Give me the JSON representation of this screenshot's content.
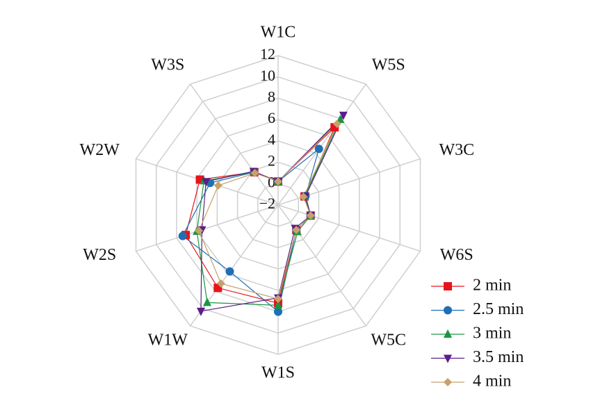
{
  "chart_data": {
    "type": "radar",
    "categories": [
      "W1C",
      "W5S",
      "W3C",
      "W6S",
      "W5C",
      "W1S",
      "W1W",
      "W2S",
      "W2W",
      "W3S"
    ],
    "rlim": [
      -2,
      12
    ],
    "rticks": [
      {
        "value": -2,
        "label": "−2"
      },
      0,
      2,
      4,
      6,
      8,
      10,
      12
    ],
    "grid": true,
    "legend": "bottom-right",
    "series": [
      {
        "name": "2 min",
        "color": "#e8141b",
        "marker": "square",
        "values": [
          0.2,
          7.0,
          0.6,
          1.2,
          0.9,
          7.2,
          7.6,
          7.1,
          5.7,
          1.8
        ]
      },
      {
        "name": "2.5 min",
        "color": "#1f6fb4",
        "marker": "circle",
        "values": [
          0.2,
          4.5,
          0.7,
          1.2,
          0.9,
          8.0,
          5.7,
          7.4,
          4.7,
          1.8
        ]
      },
      {
        "name": "3 min",
        "color": "#1a9641",
        "marker": "triangle-up",
        "values": [
          0.2,
          7.9,
          0.6,
          1.2,
          1.1,
          7.4,
          9.3,
          6.0,
          5.3,
          1.8
        ]
      },
      {
        "name": "3.5 min",
        "color": "#5b1e87",
        "marker": "triangle-down",
        "values": [
          0.2,
          8.4,
          0.7,
          1.2,
          0.7,
          6.7,
          10.3,
          5.5,
          5.1,
          1.9
        ]
      },
      {
        "name": "4 min",
        "color": "#c8a06a",
        "marker": "diamond",
        "values": [
          0.2,
          7.4,
          0.5,
          1.2,
          0.9,
          6.8,
          7.1,
          5.8,
          3.9,
          1.7
        ]
      }
    ]
  }
}
